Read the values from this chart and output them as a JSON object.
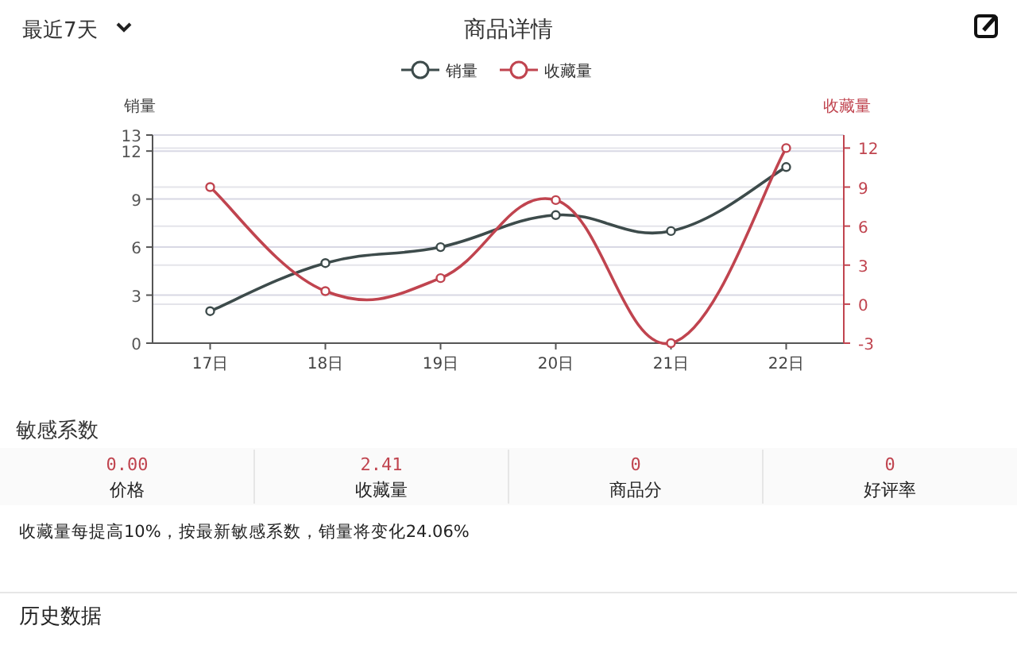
{
  "chart_data": [
    {
      "type": "line",
      "title": "商品详情",
      "annotations": [
        "最近7天"
      ],
      "ylabel": "销量",
      "y2label": "收藏量",
      "categories": [
        "17日",
        "18日",
        "19日",
        "20日",
        "21日",
        "22日"
      ],
      "series": [
        {
          "name": "销量",
          "color": "#3d4b4b",
          "values": [
            2,
            5,
            6,
            8,
            7,
            11
          ]
        },
        {
          "name": "收藏量",
          "color": "#c0444f",
          "axis": "y2",
          "values": [
            9,
            1,
            2,
            8,
            -3,
            12
          ]
        }
      ],
      "ylim": [
        0,
        13
      ],
      "yticks": [
        0,
        3,
        6,
        9,
        12,
        13
      ],
      "y2lim": [
        -3,
        13
      ],
      "y2ticks": [
        -3,
        0,
        3,
        6,
        9,
        12
      ],
      "grid": "y",
      "legend": "top",
      "marker": "circle",
      "line_style": "solid"
    },
    {
      "type": "other",
      "title": "敏感系数",
      "categories": [
        "价格",
        "收藏量",
        "商品分",
        "好评率"
      ],
      "value_labels": [
        "0.00",
        "2.41",
        "0",
        "0"
      ],
      "annotations": [
        "收藏量每提高10%，按最新敏感系数，销量将变化24.06%",
        "历史数据"
      ]
    }
  ]
}
